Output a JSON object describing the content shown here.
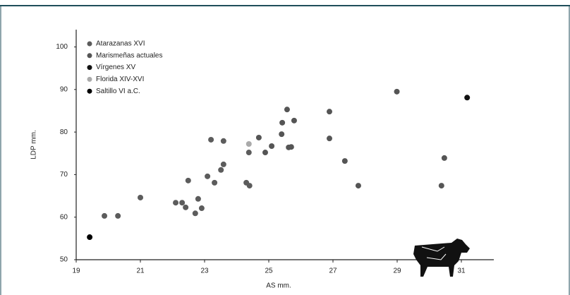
{
  "chart_data": {
    "type": "scatter",
    "x_label": "AS mm.",
    "y_label": "LDP mm.",
    "xlim": [
      19,
      32
    ],
    "xticks": [
      19,
      21,
      23,
      25,
      27,
      29,
      31
    ],
    "ylim": [
      50,
      104
    ],
    "yticks": [
      50,
      60,
      70,
      80,
      90,
      100
    ],
    "series": [
      {
        "name": "Atarazanas XVI",
        "color": "#5c5c5c",
        "x": [
          19.88,
          20.3,
          21.0,
          22.1,
          22.3,
          22.41,
          22.49,
          22.71,
          22.8,
          22.91,
          23.09,
          23.2,
          23.31,
          23.51,
          23.59,
          23.59,
          24.3,
          24.38,
          24.4
        ],
        "values": [
          60.3,
          60.3,
          64.6,
          63.4,
          63.4,
          62.3,
          68.6,
          60.9,
          64.3,
          62.1,
          69.6,
          78.2,
          68.1,
          71.1,
          72.4,
          77.9,
          68.1,
          75.2,
          67.4
        ]
      },
      {
        "name": "Marismeñas actuales",
        "color": "#555555",
        "x": [
          24.69,
          24.89,
          25.09,
          25.4,
          25.42,
          25.57,
          25.62,
          25.7,
          25.79,
          26.89,
          26.89,
          27.37,
          27.79,
          28.99,
          30.38,
          30.47
        ],
        "values": [
          78.7,
          75.2,
          76.7,
          79.5,
          82.2,
          85.3,
          76.4,
          76.5,
          82.7,
          84.8,
          78.5,
          73.2,
          67.4,
          89.5,
          67.4,
          73.9
        ]
      },
      {
        "name": "Vírgenes XV",
        "color": "#111111",
        "x": [
          31.18
        ],
        "values": [
          88.1
        ]
      },
      {
        "name": "Florida XIV-XVI",
        "color": "#aaaaaa",
        "x": [
          24.38
        ],
        "values": [
          77.2
        ]
      },
      {
        "name": "Saltillo VI a.C.",
        "color": "#000000",
        "x": [
          19.42
        ],
        "values": [
          55.3
        ]
      }
    ]
  }
}
